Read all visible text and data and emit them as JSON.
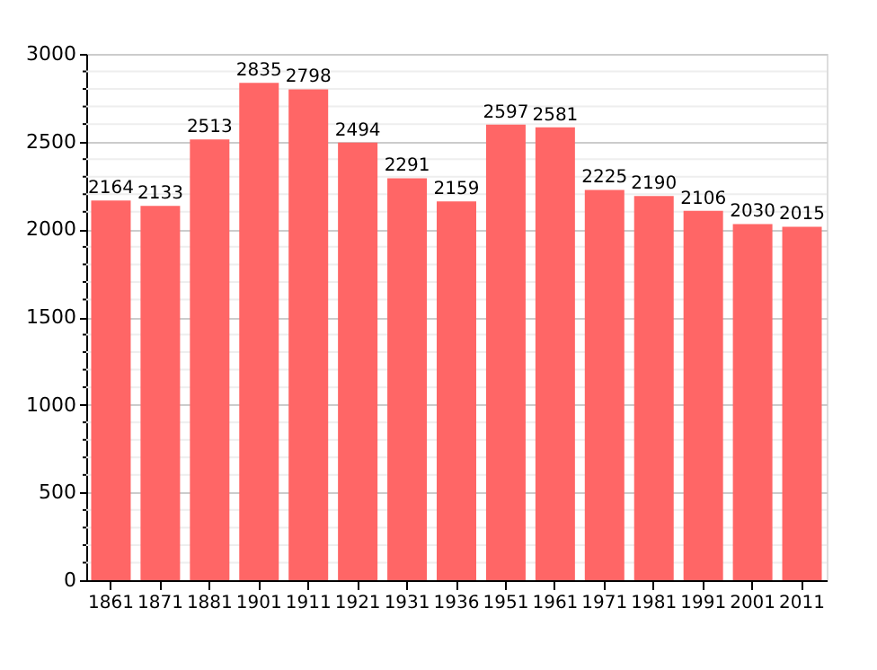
{
  "chart_data": {
    "type": "bar",
    "categories": [
      "1861",
      "1871",
      "1881",
      "1901",
      "1911",
      "1921",
      "1931",
      "1936",
      "1951",
      "1961",
      "1971",
      "1981",
      "1991",
      "2001",
      "2011"
    ],
    "values": [
      2164,
      2133,
      2513,
      2835,
      2798,
      2494,
      2291,
      2159,
      2597,
      2581,
      2225,
      2190,
      2106,
      2030,
      2015
    ],
    "color": "#ff6666",
    "ylim": [
      0,
      3000
    ],
    "yticks": [
      0,
      {
        "value": 100,
        "label": null
      },
      {
        "value": 200,
        "label": null
      },
      {
        "value": 300,
        "label": null
      },
      {
        "value": 400,
        "label": null
      },
      500,
      {
        "value": 600,
        "label": null
      },
      {
        "value": 700,
        "label": null
      },
      {
        "value": 800,
        "label": null
      },
      {
        "value": 900,
        "label": null
      },
      1000,
      {
        "value": 1100,
        "label": null
      },
      {
        "value": 1200,
        "label": null
      },
      {
        "value": 1300,
        "label": null
      },
      {
        "value": 1400,
        "label": null
      },
      1500,
      {
        "value": 1600,
        "label": null
      },
      {
        "value": 1700,
        "label": null
      },
      {
        "value": 1800,
        "label": null
      },
      {
        "value": 1900,
        "label": null
      },
      2000,
      {
        "value": 2100,
        "label": null
      },
      {
        "value": 2200,
        "label": null
      },
      {
        "value": 2300,
        "label": null
      },
      {
        "value": 2400,
        "label": null
      },
      2500,
      {
        "value": 2600,
        "label": null
      },
      {
        "value": 2700,
        "label": null
      },
      {
        "value": 2800,
        "label": null
      },
      {
        "value": 2900,
        "label": null
      },
      3000
    ],
    "grid": "y",
    "data_labels": true
  }
}
